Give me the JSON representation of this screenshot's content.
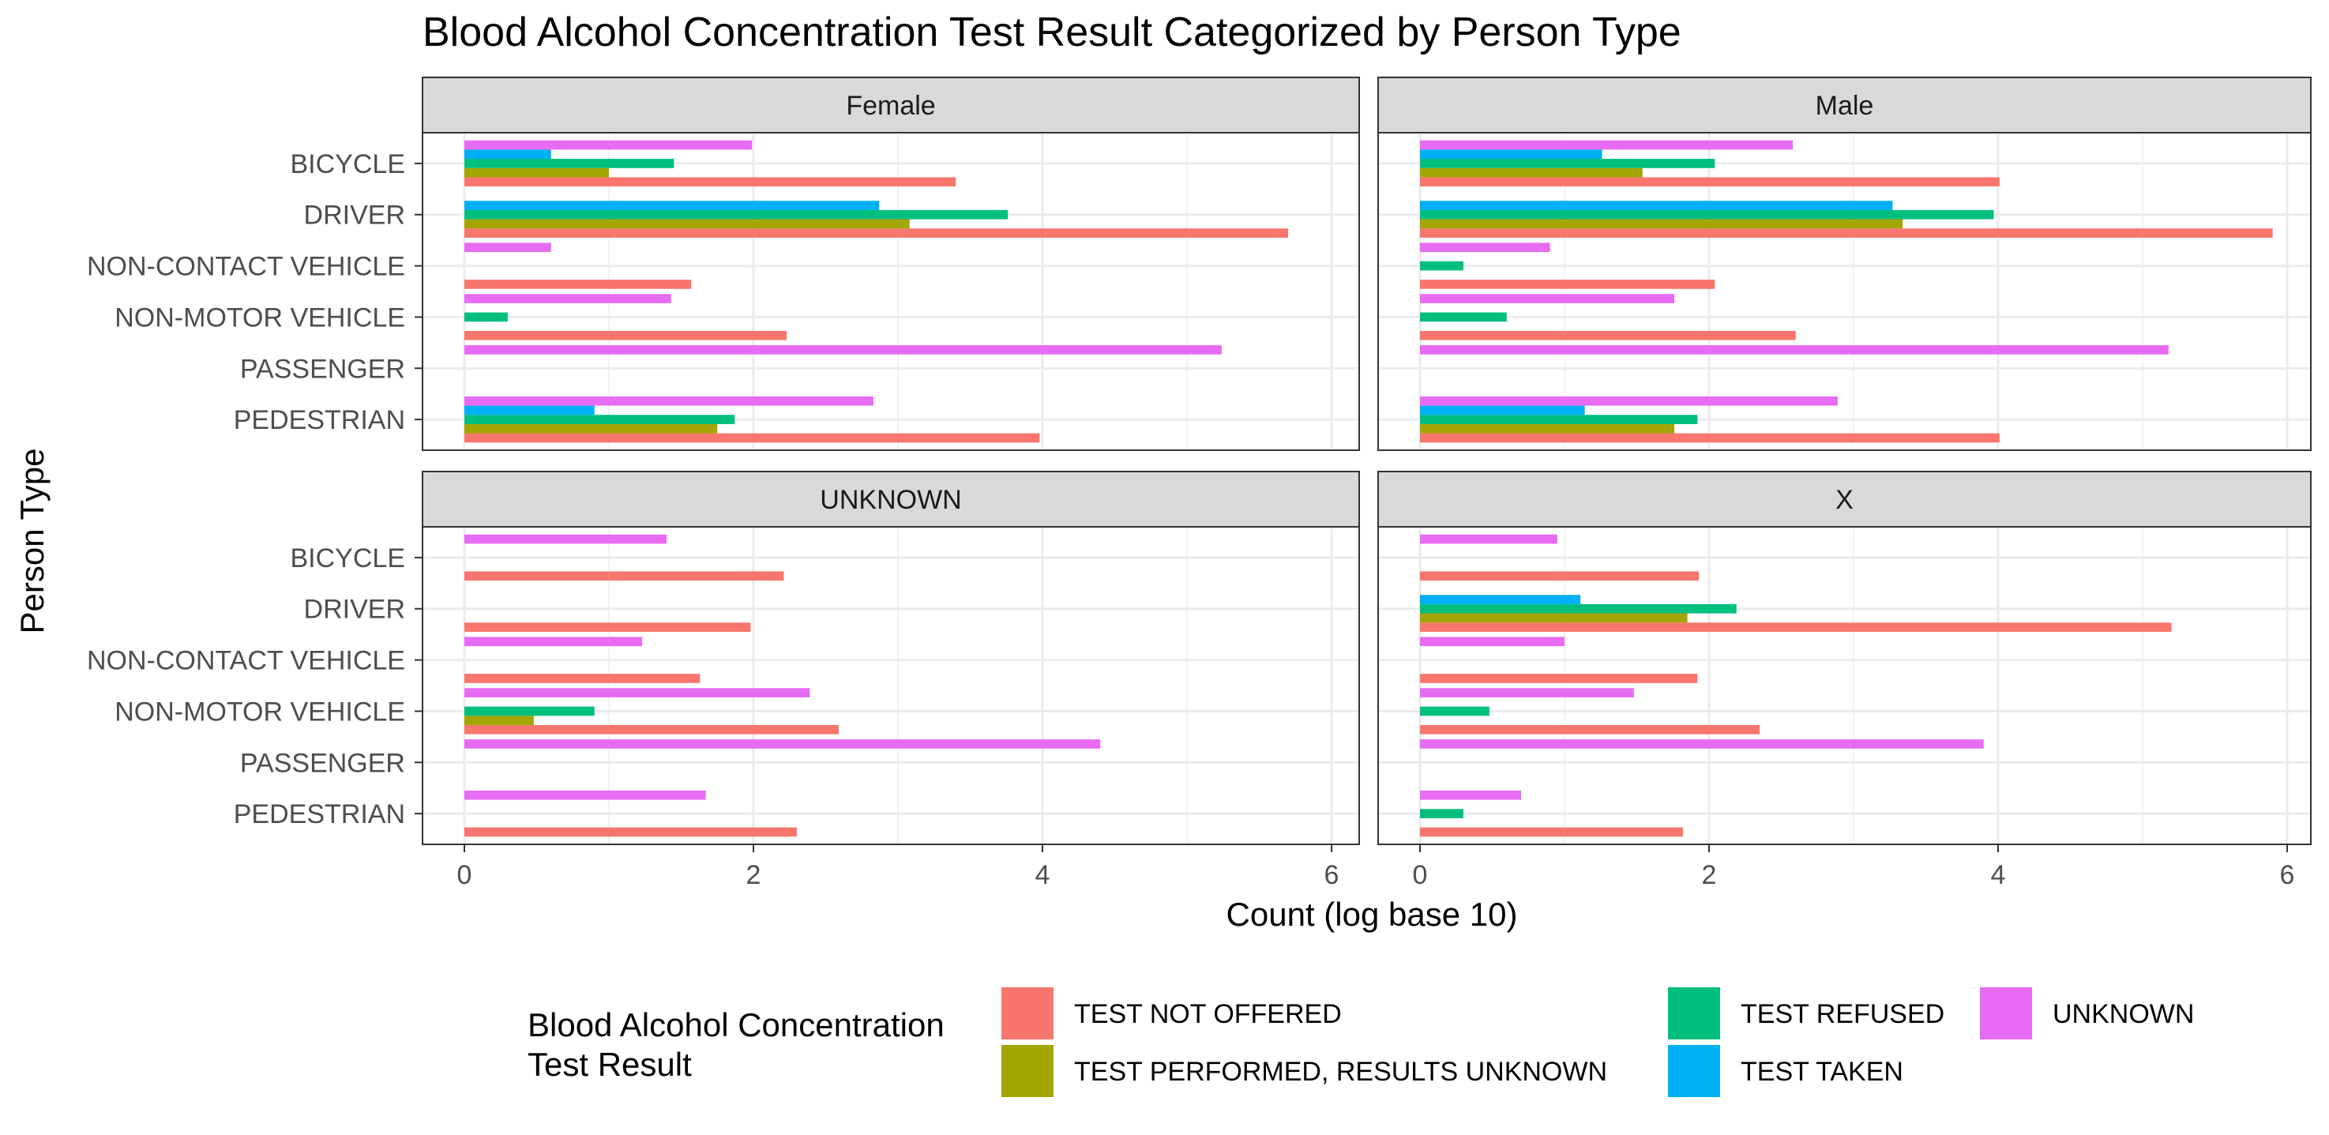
{
  "chart_data": {
    "type": "bar",
    "orientation": "horizontal",
    "title": "Blood Alcohol Concentration Test Result Categorized by Person Type",
    "xlabel": "Count (log base 10)",
    "ylabel": "Person Type",
    "xlim": [
      0,
      6.1
    ],
    "xticks": [
      0,
      2,
      4,
      6
    ],
    "grid": true,
    "legend_position": "bottom",
    "legend_title": [
      "Blood Alcohol Concentration",
      "Test Result"
    ],
    "categories": [
      "PEDESTRIAN",
      "PASSENGER",
      "NON-MOTOR VEHICLE",
      "NON-CONTACT VEHICLE",
      "DRIVER",
      "BICYCLE"
    ],
    "series": [
      {
        "name": "TEST NOT OFFERED",
        "color": "#F8766D"
      },
      {
        "name": "TEST PERFORMED, RESULTS UNKNOWN",
        "color": "#A3A500"
      },
      {
        "name": "TEST REFUSED",
        "color": "#00BF7D"
      },
      {
        "name": "TEST TAKEN",
        "color": "#00B0F6"
      },
      {
        "name": "UNKNOWN",
        "color": "#E76BF3"
      }
    ],
    "panels": [
      {
        "label": "Female",
        "values": {
          "PEDESTRIAN": {
            "TEST NOT OFFERED": 3.98,
            "TEST PERFORMED, RESULTS UNKNOWN": 1.75,
            "TEST REFUSED": 1.87,
            "TEST TAKEN": 0.9,
            "UNKNOWN": 2.83
          },
          "PASSENGER": {
            "UNKNOWN": 5.24
          },
          "NON-MOTOR VEHICLE": {
            "TEST NOT OFFERED": 2.23,
            "TEST REFUSED": 0.3,
            "UNKNOWN": 1.43
          },
          "NON-CONTACT VEHICLE": {
            "TEST NOT OFFERED": 1.57,
            "UNKNOWN": 0.6
          },
          "DRIVER": {
            "TEST NOT OFFERED": 5.7,
            "TEST PERFORMED, RESULTS UNKNOWN": 3.08,
            "TEST REFUSED": 3.76,
            "TEST TAKEN": 2.87,
            "UNKNOWN": 0
          },
          "BICYCLE": {
            "TEST NOT OFFERED": 3.4,
            "TEST PERFORMED, RESULTS UNKNOWN": 1.0,
            "TEST REFUSED": 1.45,
            "TEST TAKEN": 0.6,
            "UNKNOWN": 1.99
          }
        }
      },
      {
        "label": "Male",
        "values": {
          "PEDESTRIAN": {
            "TEST NOT OFFERED": 4.01,
            "TEST PERFORMED, RESULTS UNKNOWN": 1.76,
            "TEST REFUSED": 1.92,
            "TEST TAKEN": 1.14,
            "UNKNOWN": 2.89
          },
          "PASSENGER": {
            "UNKNOWN": 5.18
          },
          "NON-MOTOR VEHICLE": {
            "TEST NOT OFFERED": 2.6,
            "TEST REFUSED": 0.6,
            "UNKNOWN": 1.76
          },
          "NON-CONTACT VEHICLE": {
            "TEST NOT OFFERED": 2.04,
            "TEST REFUSED": 0.3,
            "UNKNOWN": 0.9
          },
          "DRIVER": {
            "TEST NOT OFFERED": 5.9,
            "TEST PERFORMED, RESULTS UNKNOWN": 3.34,
            "TEST REFUSED": 3.97,
            "TEST TAKEN": 3.27,
            "UNKNOWN": 0
          },
          "BICYCLE": {
            "TEST NOT OFFERED": 4.01,
            "TEST PERFORMED, RESULTS UNKNOWN": 1.54,
            "TEST REFUSED": 2.04,
            "TEST TAKEN": 1.26,
            "UNKNOWN": 2.58
          }
        }
      },
      {
        "label": "UNKNOWN",
        "values": {
          "PEDESTRIAN": {
            "TEST NOT OFFERED": 2.3,
            "UNKNOWN": 1.67
          },
          "PASSENGER": {
            "UNKNOWN": 4.4
          },
          "NON-MOTOR VEHICLE": {
            "TEST NOT OFFERED": 2.59,
            "TEST PERFORMED, RESULTS UNKNOWN": 0.48,
            "TEST REFUSED": 0.9,
            "UNKNOWN": 2.39
          },
          "NON-CONTACT VEHICLE": {
            "TEST NOT OFFERED": 1.63,
            "UNKNOWN": 1.23
          },
          "DRIVER": {
            "TEST NOT OFFERED": 1.98
          },
          "BICYCLE": {
            "TEST NOT OFFERED": 2.21,
            "UNKNOWN": 1.4
          }
        }
      },
      {
        "label": "X",
        "values": {
          "PEDESTRIAN": {
            "TEST NOT OFFERED": 1.82,
            "TEST REFUSED": 0.3,
            "UNKNOWN": 0.7
          },
          "PASSENGER": {
            "UNKNOWN": 3.9
          },
          "NON-MOTOR VEHICLE": {
            "TEST NOT OFFERED": 2.35,
            "TEST REFUSED": 0.48,
            "UNKNOWN": 1.48
          },
          "NON-CONTACT VEHICLE": {
            "TEST NOT OFFERED": 1.92,
            "UNKNOWN": 1.0
          },
          "DRIVER": {
            "TEST NOT OFFERED": 5.2,
            "TEST PERFORMED, RESULTS UNKNOWN": 1.85,
            "TEST REFUSED": 2.19,
            "TEST TAKEN": 1.11
          },
          "BICYCLE": {
            "TEST NOT OFFERED": 1.93,
            "UNKNOWN": 0.95
          }
        }
      }
    ]
  }
}
